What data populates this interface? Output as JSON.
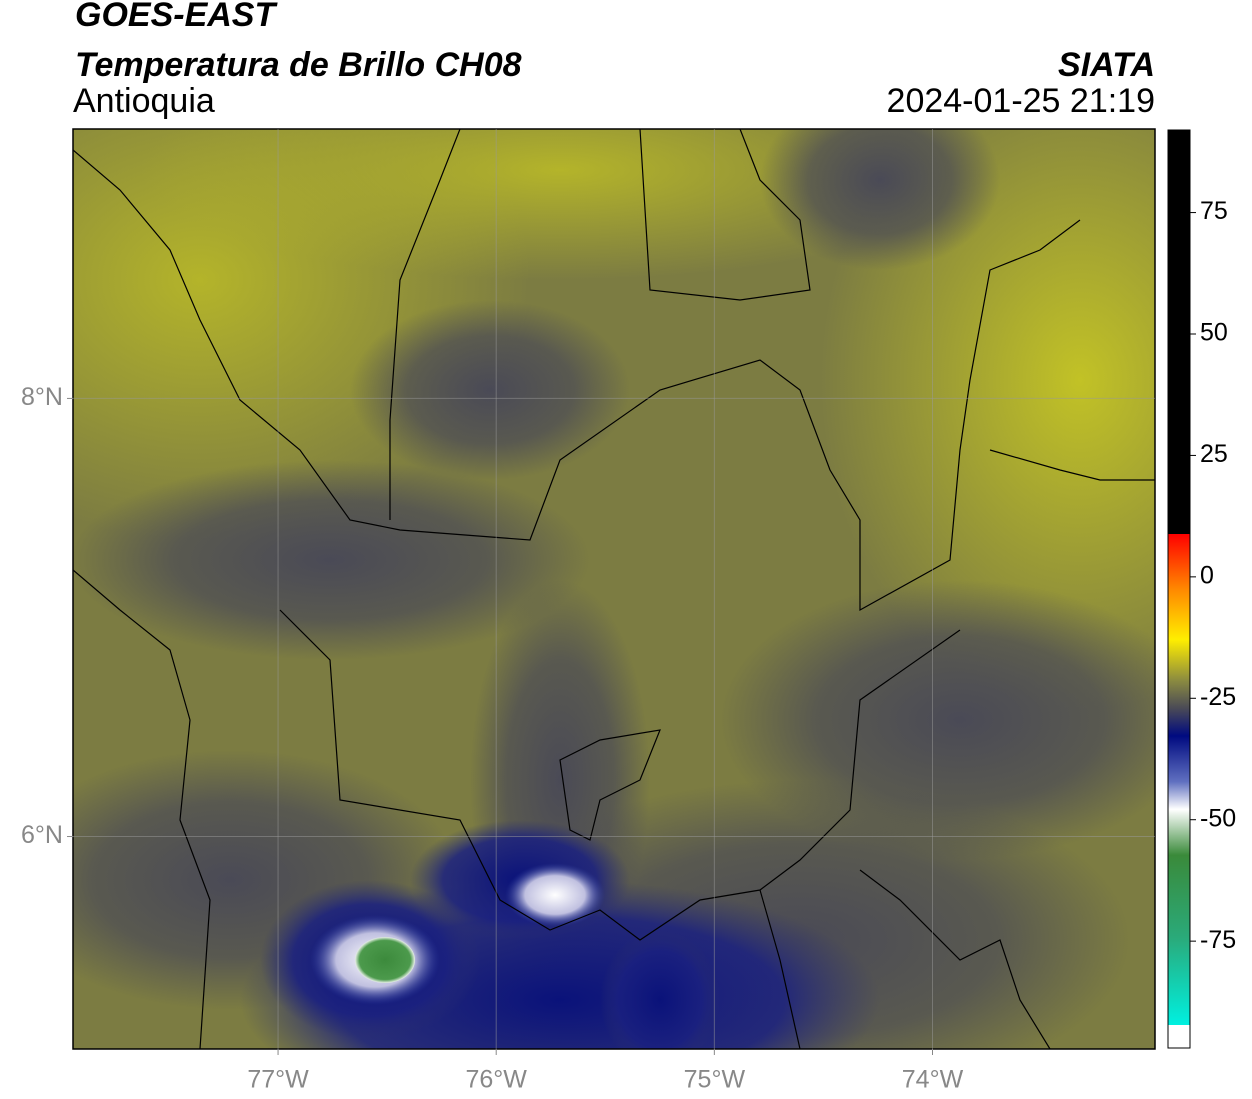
{
  "header": {
    "satellite": "GOES-EAST",
    "product": "Temperatura de Brillo CH08",
    "source": "SIATA",
    "region": "Antioquia",
    "datetime": "2024-01-25 21:19"
  },
  "map": {
    "xlim": [
      -77.94,
      -72.98
    ],
    "ylim": [
      5.03,
      9.23
    ],
    "xticks": [
      {
        "value": -77,
        "label": "77°W"
      },
      {
        "value": -76,
        "label": "76°W"
      },
      {
        "value": -75,
        "label": "75°W"
      },
      {
        "value": -74,
        "label": "74°W"
      }
    ],
    "yticks": [
      {
        "value": 8,
        "label": "8°N"
      },
      {
        "value": 6,
        "label": "6°N"
      }
    ],
    "grid": true
  },
  "colorbar": {
    "lim": [
      -97,
      92
    ],
    "ticks": [
      75,
      50,
      25,
      0,
      -25,
      -50,
      -75
    ]
  }
}
